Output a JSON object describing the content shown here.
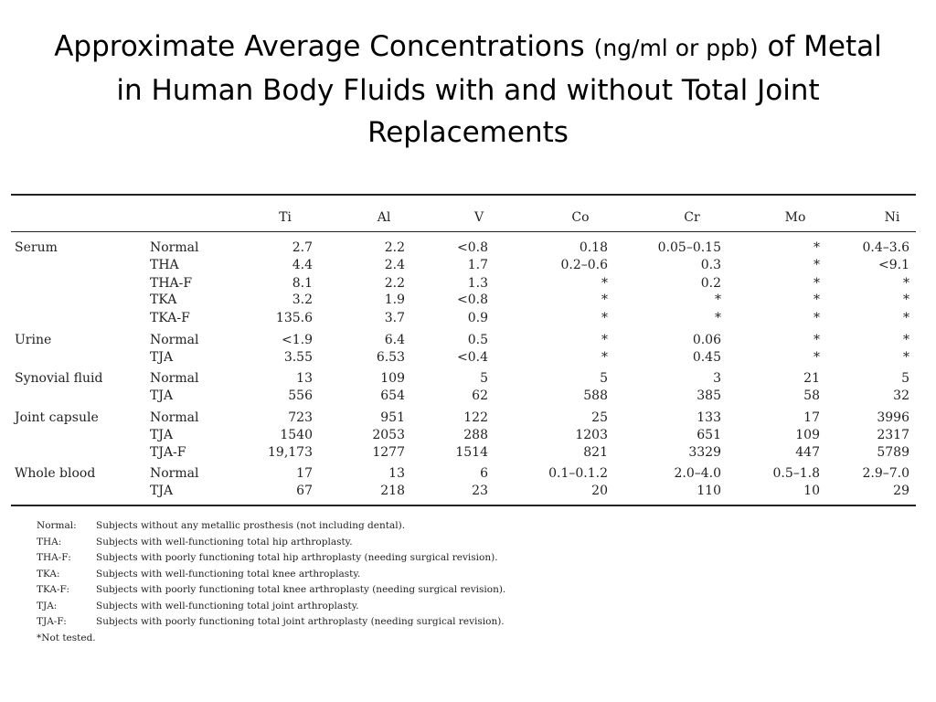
{
  "title": {
    "part1": "Approximate Average Concentrations ",
    "unit": "(ng/ml or ppb)",
    "part2": " of Metal",
    "line2": "in Human Body Fluids with and without Total Joint",
    "line3": "Replacements"
  },
  "table": {
    "headers": [
      "Ti",
      "Al",
      "V",
      "Co",
      "Cr",
      "Mo",
      "Ni"
    ],
    "rows": [
      {
        "group": "Serum",
        "sub": "Normal",
        "cells": [
          "2.7",
          "2.2",
          "<0.8",
          "0.18",
          "0.05–0.15",
          "*",
          "0.4–3.6"
        ]
      },
      {
        "group": "",
        "sub": "THA",
        "cells": [
          "4.4",
          "2.4",
          "1.7",
          "0.2–0.6",
          "0.3",
          "*",
          "<9.1"
        ]
      },
      {
        "group": "",
        "sub": "THA-F",
        "cells": [
          "8.1",
          "2.2",
          "1.3",
          "*",
          "0.2",
          "*",
          "*"
        ]
      },
      {
        "group": "",
        "sub": "TKA",
        "cells": [
          "3.2",
          "1.9",
          "<0.8",
          "*",
          "*",
          "*",
          "*"
        ]
      },
      {
        "group": "",
        "sub": "TKA-F",
        "cells": [
          "135.6",
          "3.7",
          "0.9",
          "*",
          "*",
          "*",
          "*"
        ]
      },
      {
        "group": "Urine",
        "sub": "Normal",
        "cells": [
          "<1.9",
          "6.4",
          "0.5",
          "*",
          "0.06",
          "*",
          "*"
        ]
      },
      {
        "group": "",
        "sub": "TJA",
        "cells": [
          "3.55",
          "6.53",
          "<0.4",
          "*",
          "0.45",
          "*",
          "*"
        ]
      },
      {
        "group": "Synovial fluid",
        "sub": "Normal",
        "cells": [
          "13",
          "109",
          "5",
          "5",
          "3",
          "21",
          "5"
        ]
      },
      {
        "group": "",
        "sub": "TJA",
        "cells": [
          "556",
          "654",
          "62",
          "588",
          "385",
          "58",
          "32"
        ]
      },
      {
        "group": "Joint capsule",
        "sub": "Normal",
        "cells": [
          "723",
          "951",
          "122",
          "25",
          "133",
          "17",
          "3996"
        ]
      },
      {
        "group": "",
        "sub": "TJA",
        "cells": [
          "1540",
          "2053",
          "288",
          "1203",
          "651",
          "109",
          "2317"
        ]
      },
      {
        "group": "",
        "sub": "TJA-F",
        "cells": [
          "19,173",
          "1277",
          "1514",
          "821",
          "3329",
          "447",
          "5789"
        ]
      },
      {
        "group": "Whole blood",
        "sub": "Normal",
        "cells": [
          "17",
          "13",
          "6",
          "0.1–0.1.2",
          "2.0–4.0",
          "0.5–1.8",
          "2.9–7.0"
        ]
      },
      {
        "group": "",
        "sub": "TJA",
        "cells": [
          "67",
          "218",
          "23",
          "20",
          "110",
          "10",
          "29"
        ]
      }
    ]
  },
  "notes": [
    {
      "key": "Normal:",
      "text": "Subjects without any metallic prosthesis (not including dental)."
    },
    {
      "key": "THA:",
      "text": "Subjects with well-functioning total hip arthroplasty."
    },
    {
      "key": "THA-F:",
      "text": "Subjects with poorly functioning total hip arthroplasty (needing surgical revision)."
    },
    {
      "key": "TKA:",
      "text": "Subjects with well-functioning total knee arthroplasty."
    },
    {
      "key": "TKA-F:",
      "text": "Subjects with poorly functioning total knee arthroplasty (needing surgical revision)."
    },
    {
      "key": "TJA:",
      "text": "Subjects with well-functioning total joint arthroplasty."
    },
    {
      "key": "TJA-F:",
      "text": "Subjects with poorly functioning total joint arthroplasty (needing surgical revision)."
    }
  ],
  "footnote": "*Not tested."
}
